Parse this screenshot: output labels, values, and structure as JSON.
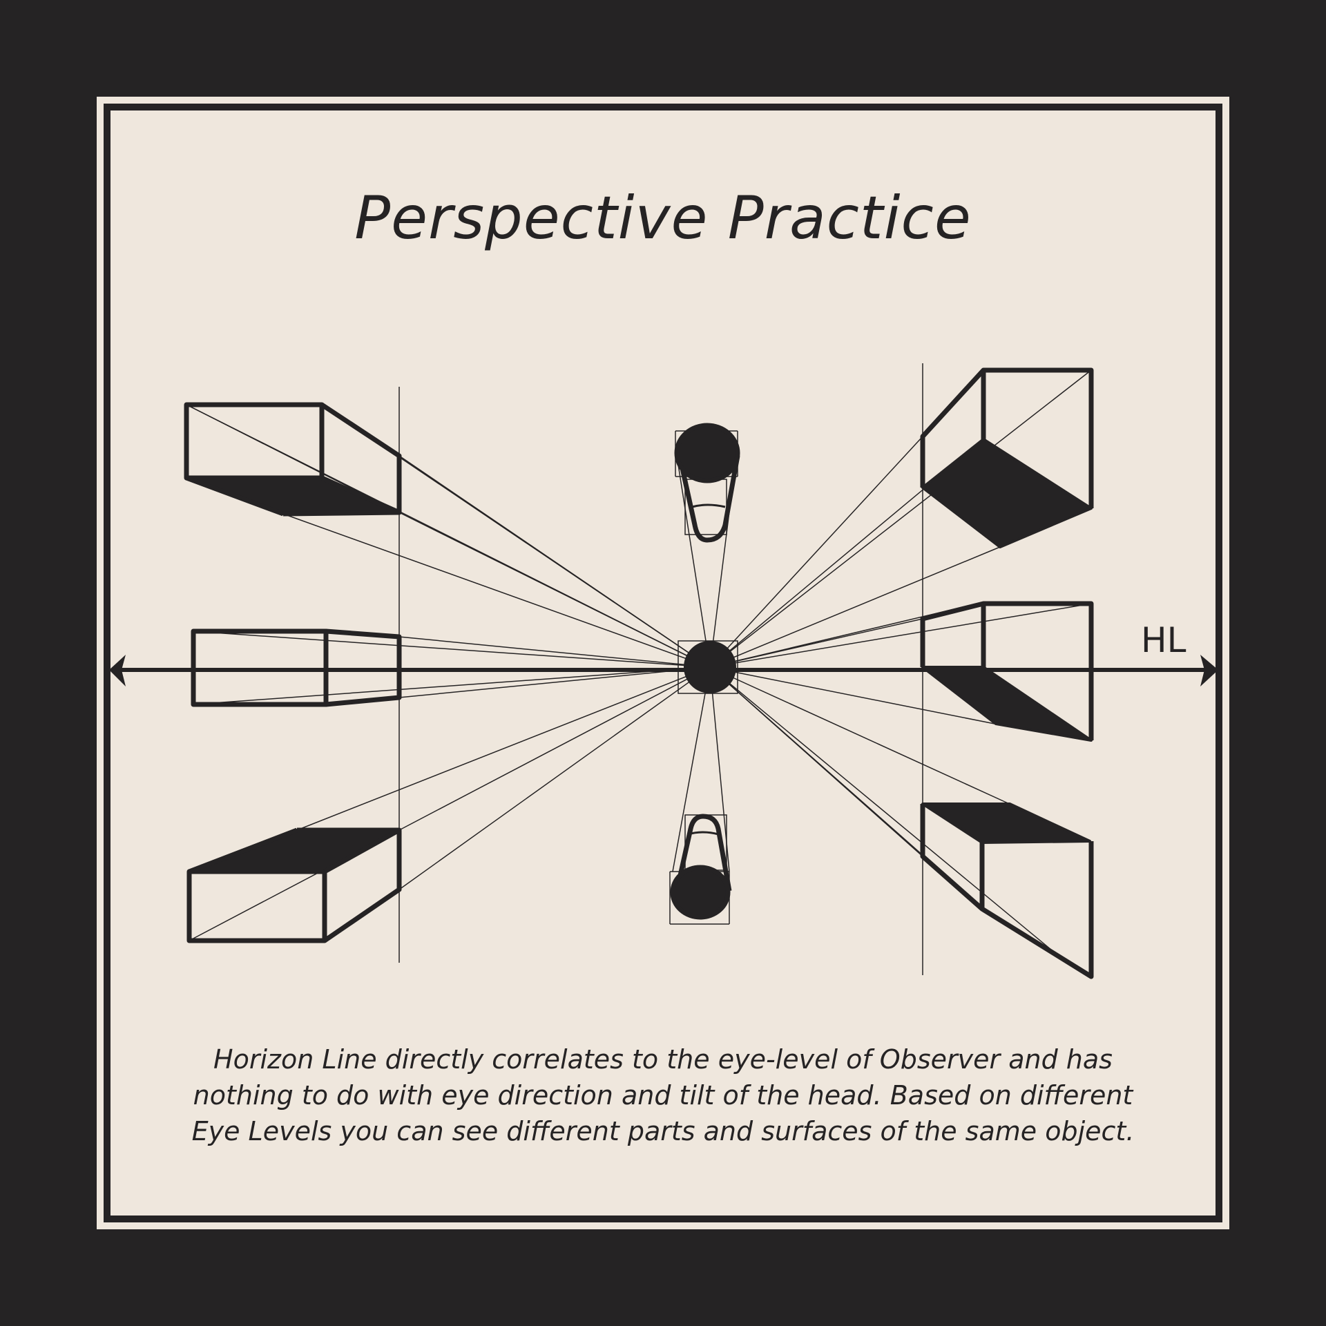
{
  "title": "Perspective Practice",
  "horizon_label": "HL",
  "caption": {
    "lines": [
      "Horizon Line directly correlates to the eye-level of Observer and has",
      "nothing to do with eye direction and tilt of the head. Based on different",
      "Eye Levels you can see different parts and surfaces of the same object."
    ]
  },
  "colors": {
    "background": "#252324",
    "paper": "#efe7dd",
    "ink": "#252324"
  }
}
